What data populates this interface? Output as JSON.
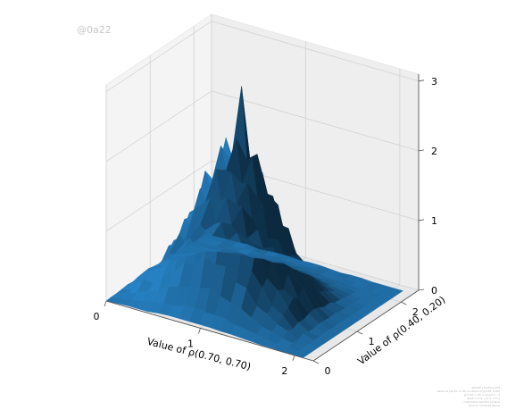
{
  "watermark": "@0a22",
  "credit_lines": [
    "@0a22 | Surface plot",
    "Value of ρ(0.70, 0.70) vs Value of ρ(0.40, 0.20)",
    "grid 20 × 20, z range 0 – 3",
    "axes: x 0–2, y 0–2, z 0–3",
    "matplotlib mplot3d surface",
    "source: rendered figure"
  ],
  "colors": {
    "surface": "#2377b4",
    "pane": "#f2f2f2",
    "grid": "#d2d2d2",
    "axis": "#555555"
  },
  "chart_data": {
    "type": "surface3d",
    "title": "",
    "xlabel": "Value of ρ(0.70, 0.70)",
    "ylabel": "Value of ρ(0.40, 0.20)",
    "zlabel": "",
    "xlim": [
      0,
      2.2
    ],
    "ylim": [
      0,
      2.4
    ],
    "zlim": [
      0,
      3.1
    ],
    "xticks": [
      {
        "value": 0,
        "label": "0"
      },
      {
        "value": 1,
        "label": "1"
      },
      {
        "value": 2,
        "label": "2"
      }
    ],
    "yticks": [
      {
        "value": 0,
        "label": "0"
      },
      {
        "value": 1,
        "label": "1"
      },
      {
        "value": 2,
        "label": "2"
      }
    ],
    "zticks": [
      {
        "value": 0,
        "label": "0"
      },
      {
        "value": 1,
        "label": "1"
      },
      {
        "value": 2,
        "label": "2"
      },
      {
        "value": 3,
        "label": "3"
      }
    ],
    "x": [
      0.0,
      0.11,
      0.22,
      0.33,
      0.44,
      0.55,
      0.66,
      0.77,
      0.88,
      0.99,
      1.1,
      1.21,
      1.32,
      1.43,
      1.54,
      1.65,
      1.76,
      1.87,
      1.98,
      2.09
    ],
    "y": [
      0.0,
      0.12,
      0.24,
      0.36,
      0.48,
      0.6,
      0.72,
      0.84,
      0.96,
      1.08,
      1.2,
      1.32,
      1.44,
      1.56,
      1.68,
      1.8,
      1.92,
      2.04,
      2.16,
      2.28
    ],
    "z": [
      [
        0.0,
        0.01,
        0.01,
        0.02,
        0.03,
        0.02,
        0.04,
        0.05,
        0.06,
        0.04,
        0.03,
        0.04,
        0.02,
        0.02,
        0.01,
        0.01,
        0.0,
        0.0,
        0.0,
        0.0
      ],
      [
        0.01,
        0.03,
        0.07,
        0.05,
        0.15,
        0.09,
        0.11,
        0.14,
        0.13,
        0.1,
        0.14,
        0.08,
        0.07,
        0.06,
        0.03,
        0.02,
        0.02,
        0.0,
        0.01,
        0.0
      ],
      [
        0.02,
        0.05,
        0.11,
        0.26,
        0.19,
        0.29,
        0.25,
        0.31,
        0.36,
        0.3,
        0.22,
        0.24,
        0.13,
        0.11,
        0.09,
        0.04,
        0.03,
        0.01,
        0.02,
        0.01
      ],
      [
        0.02,
        0.08,
        0.17,
        0.24,
        0.38,
        0.47,
        0.62,
        0.52,
        0.69,
        0.51,
        0.53,
        0.35,
        0.31,
        0.19,
        0.14,
        0.08,
        0.05,
        0.02,
        0.0,
        0.01
      ],
      [
        0.02,
        0.12,
        0.22,
        0.43,
        0.52,
        0.79,
        0.71,
        0.99,
        0.87,
        1.03,
        0.76,
        0.63,
        0.47,
        0.34,
        0.2,
        0.11,
        0.06,
        0.02,
        0.01,
        0.02
      ],
      [
        0.04,
        0.14,
        0.32,
        0.46,
        0.8,
        0.88,
        1.18,
        1.09,
        1.42,
        1.18,
        1.19,
        0.77,
        0.73,
        0.39,
        0.29,
        0.14,
        0.08,
        0.02,
        0.04,
        0.0
      ],
      [
        0.05,
        0.14,
        0.37,
        0.65,
        0.89,
        1.27,
        1.31,
        1.77,
        1.49,
        1.69,
        1.19,
        1.18,
        0.74,
        0.58,
        0.34,
        0.15,
        0.07,
        0.05,
        0.01,
        0.01
      ],
      [
        0.05,
        0.18,
        0.4,
        0.67,
        1.11,
        1.23,
        1.75,
        1.64,
        2.12,
        1.72,
        1.63,
        1.13,
        1.04,
        0.54,
        0.41,
        0.16,
        0.1,
        0.04,
        0.03,
        0.02
      ],
      [
        0.05,
        0.2,
        0.43,
        0.84,
        1.11,
        1.67,
        1.68,
        2.33,
        1.95,
        2.22,
        1.52,
        1.48,
        0.91,
        0.71,
        0.39,
        0.21,
        0.09,
        0.06,
        0.01,
        0.02
      ],
      [
        0.05,
        0.18,
        0.47,
        0.76,
        1.28,
        1.43,
        2.07,
        1.91,
        3.06,
        1.96,
        1.93,
        1.31,
        1.18,
        0.62,
        0.45,
        0.2,
        0.12,
        0.04,
        0.02,
        0.01
      ],
      [
        0.05,
        0.18,
        0.4,
        0.78,
        1.04,
        1.57,
        1.57,
        2.17,
        1.82,
        2.08,
        1.42,
        1.35,
        0.85,
        0.65,
        0.37,
        0.19,
        0.08,
        0.06,
        0.02,
        0.02
      ],
      [
        0.04,
        0.17,
        0.35,
        0.59,
        1.0,
        1.11,
        1.57,
        1.47,
        1.91,
        1.55,
        1.47,
        1.02,
        0.94,
        0.48,
        0.37,
        0.14,
        0.09,
        0.04,
        0.03,
        0.02
      ],
      [
        0.04,
        0.12,
        0.31,
        0.55,
        0.75,
        1.08,
        1.11,
        1.51,
        1.26,
        1.44,
        1.02,
        1.0,
        0.63,
        0.49,
        0.28,
        0.13,
        0.06,
        0.04,
        0.01,
        0.01
      ],
      [
        0.03,
        0.1,
        0.22,
        0.34,
        0.56,
        0.63,
        0.85,
        0.78,
        1.01,
        0.84,
        0.84,
        0.55,
        0.51,
        0.28,
        0.21,
        0.1,
        0.06,
        0.02,
        0.03,
        0.0
      ],
      [
        0.02,
        0.07,
        0.14,
        0.27,
        0.33,
        0.51,
        0.46,
        0.64,
        0.56,
        0.67,
        0.49,
        0.41,
        0.31,
        0.22,
        0.13,
        0.07,
        0.04,
        0.02,
        0.01,
        0.01
      ],
      [
        0.01,
        0.04,
        0.1,
        0.16,
        0.24,
        0.3,
        0.39,
        0.33,
        0.43,
        0.32,
        0.34,
        0.22,
        0.19,
        0.12,
        0.09,
        0.05,
        0.03,
        0.01,
        0.0,
        0.01
      ],
      [
        0.01,
        0.02,
        0.05,
        0.11,
        0.09,
        0.13,
        0.12,
        0.15,
        0.17,
        0.14,
        0.1,
        0.11,
        0.06,
        0.05,
        0.04,
        0.02,
        0.01,
        0.01,
        0.01,
        0.0
      ],
      [
        0.0,
        0.01,
        0.03,
        0.02,
        0.06,
        0.04,
        0.04,
        0.06,
        0.05,
        0.04,
        0.05,
        0.03,
        0.03,
        0.02,
        0.01,
        0.01,
        0.01,
        0.0,
        0.0,
        0.0
      ],
      [
        0.0,
        0.0,
        0.0,
        0.01,
        0.01,
        0.01,
        0.01,
        0.01,
        0.01,
        0.01,
        0.01,
        0.01,
        0.0,
        0.0,
        0.0,
        0.0,
        0.0,
        0.0,
        0.0,
        0.0
      ],
      [
        0.0,
        0.0,
        0.0,
        0.0,
        0.0,
        0.0,
        0.0,
        0.0,
        0.0,
        0.0,
        0.0,
        0.0,
        0.0,
        0.0,
        0.0,
        0.0,
        0.0,
        0.0,
        0.0,
        0.0
      ]
    ]
  }
}
